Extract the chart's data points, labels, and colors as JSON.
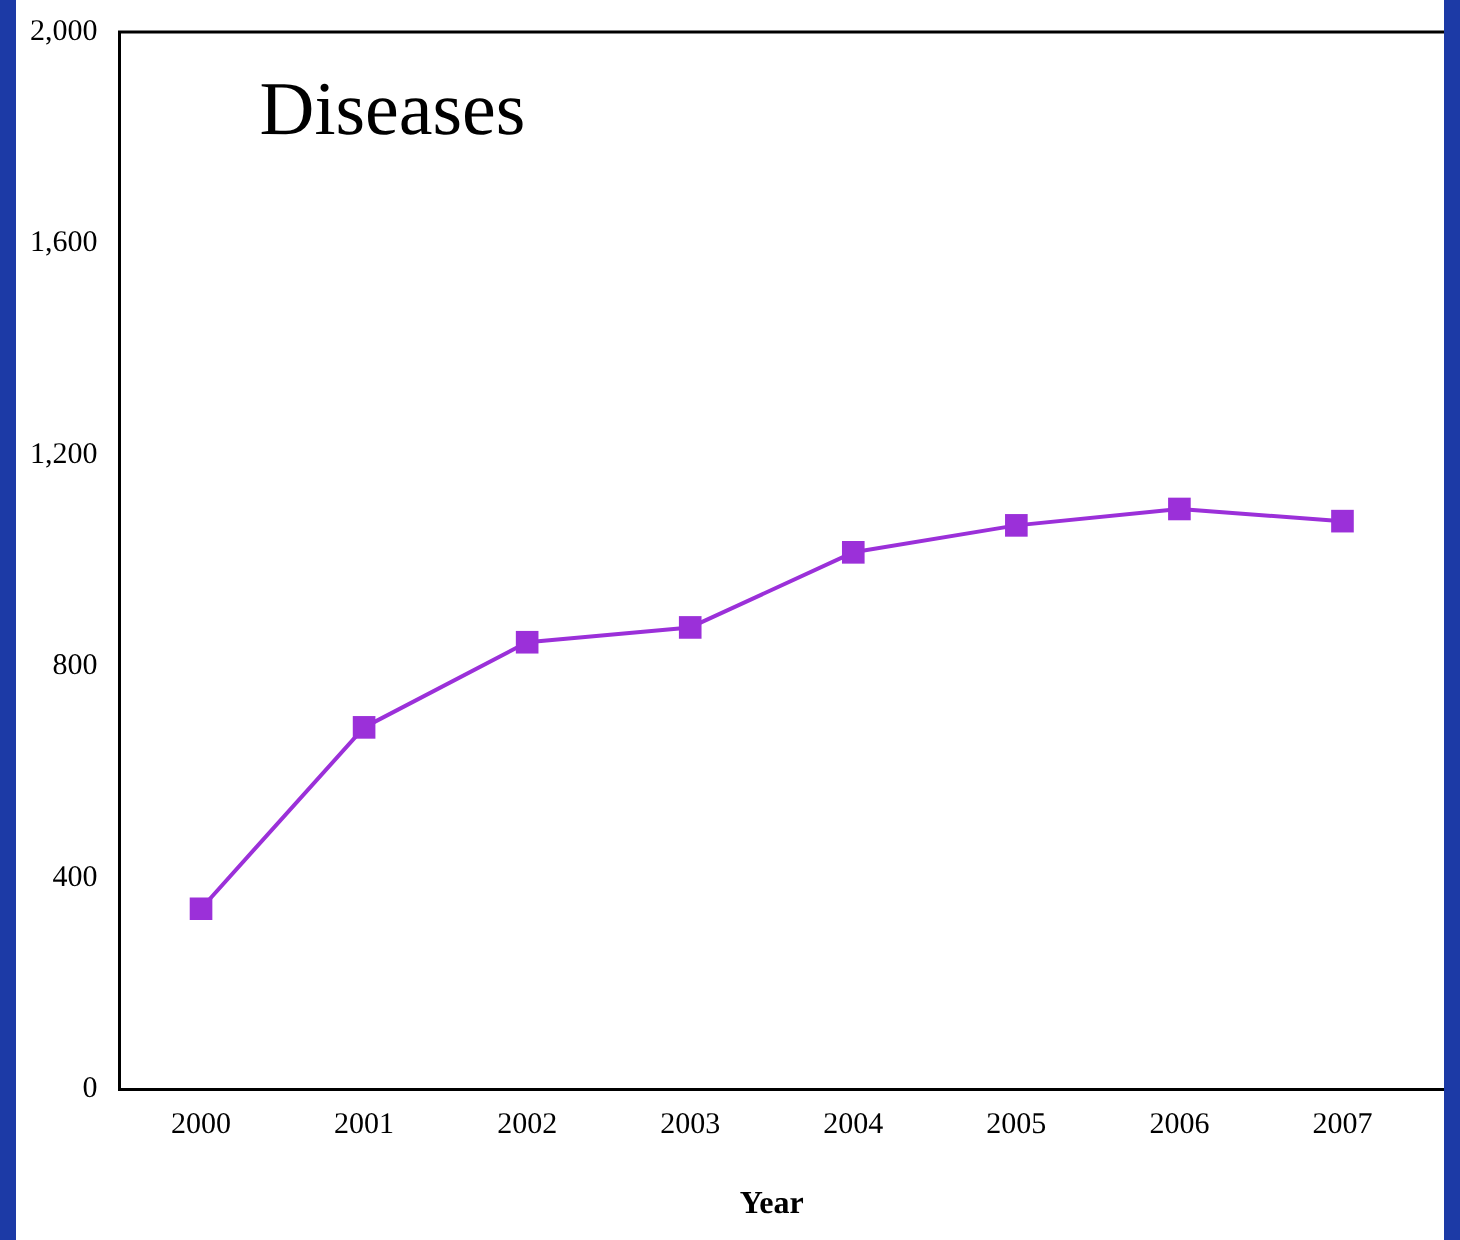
{
  "chart_data": {
    "type": "line",
    "title": "Diseases",
    "xlabel": "Year",
    "categories": [
      "2000",
      "2001",
      "2002",
      "2003",
      "2004",
      "2005",
      "2006",
      "2007"
    ],
    "series": [
      {
        "color": "#9b30d9",
        "values": [
          342,
          685,
          846,
          874,
          1016,
          1067,
          1098,
          1075
        ]
      }
    ],
    "ylim": [
      0,
      2000
    ],
    "yticks": [
      0,
      400,
      800,
      {
        "value": 1200,
        "label": "1,200"
      },
      {
        "value": 1600,
        "label": "1,600"
      },
      {
        "value": 2000,
        "label": "2,000"
      }
    ],
    "grid": false,
    "legend": false,
    "marker": "square",
    "line_style": "solid"
  }
}
